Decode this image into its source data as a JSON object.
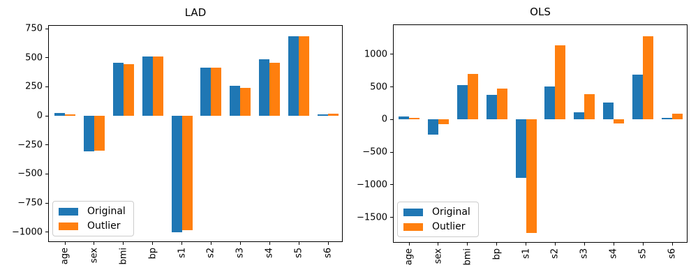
{
  "figure": {
    "background": "#ffffff"
  },
  "legend": {
    "position": "lower left"
  },
  "chart_data": [
    {
      "type": "bar",
      "title": "LAD",
      "categories": [
        "age",
        "sex",
        "bmi",
        "bp",
        "s1",
        "s2",
        "s3",
        "s4",
        "s5",
        "s6"
      ],
      "series": [
        {
          "name": "Original",
          "color": "#1f77b4",
          "values": [
            22,
            -305,
            455,
            510,
            -1000,
            413,
            260,
            485,
            683,
            10
          ]
        },
        {
          "name": "Outlier",
          "color": "#ff7f0e",
          "values": [
            12,
            -300,
            445,
            510,
            -985,
            413,
            242,
            458,
            683,
            18
          ]
        }
      ],
      "xlabel": "",
      "ylabel": "",
      "ylim": [
        -1085,
        780
      ],
      "yticks": [
        750,
        500,
        250,
        0,
        -250,
        -500,
        -750,
        -1000
      ],
      "grid": false,
      "legend_position": "lower left"
    },
    {
      "type": "bar",
      "title": "OLS",
      "categories": [
        "age",
        "sex",
        "bmi",
        "bp",
        "s1",
        "s2",
        "s3",
        "s4",
        "s5",
        "s6"
      ],
      "series": [
        {
          "name": "Original",
          "color": "#1f77b4",
          "values": [
            50,
            -235,
            530,
            382,
            -900,
            510,
            110,
            260,
            690,
            29
          ]
        },
        {
          "name": "Outlier",
          "color": "#ff7f0e",
          "values": [
            28,
            -75,
            705,
            470,
            -1740,
            1140,
            395,
            -65,
            1280,
            93
          ]
        }
      ],
      "xlabel": "",
      "ylabel": "",
      "ylim": [
        -1890,
        1460
      ],
      "yticks": [
        1000,
        500,
        0,
        -500,
        -1000,
        -1500
      ],
      "grid": false,
      "legend_position": "lower left"
    }
  ]
}
